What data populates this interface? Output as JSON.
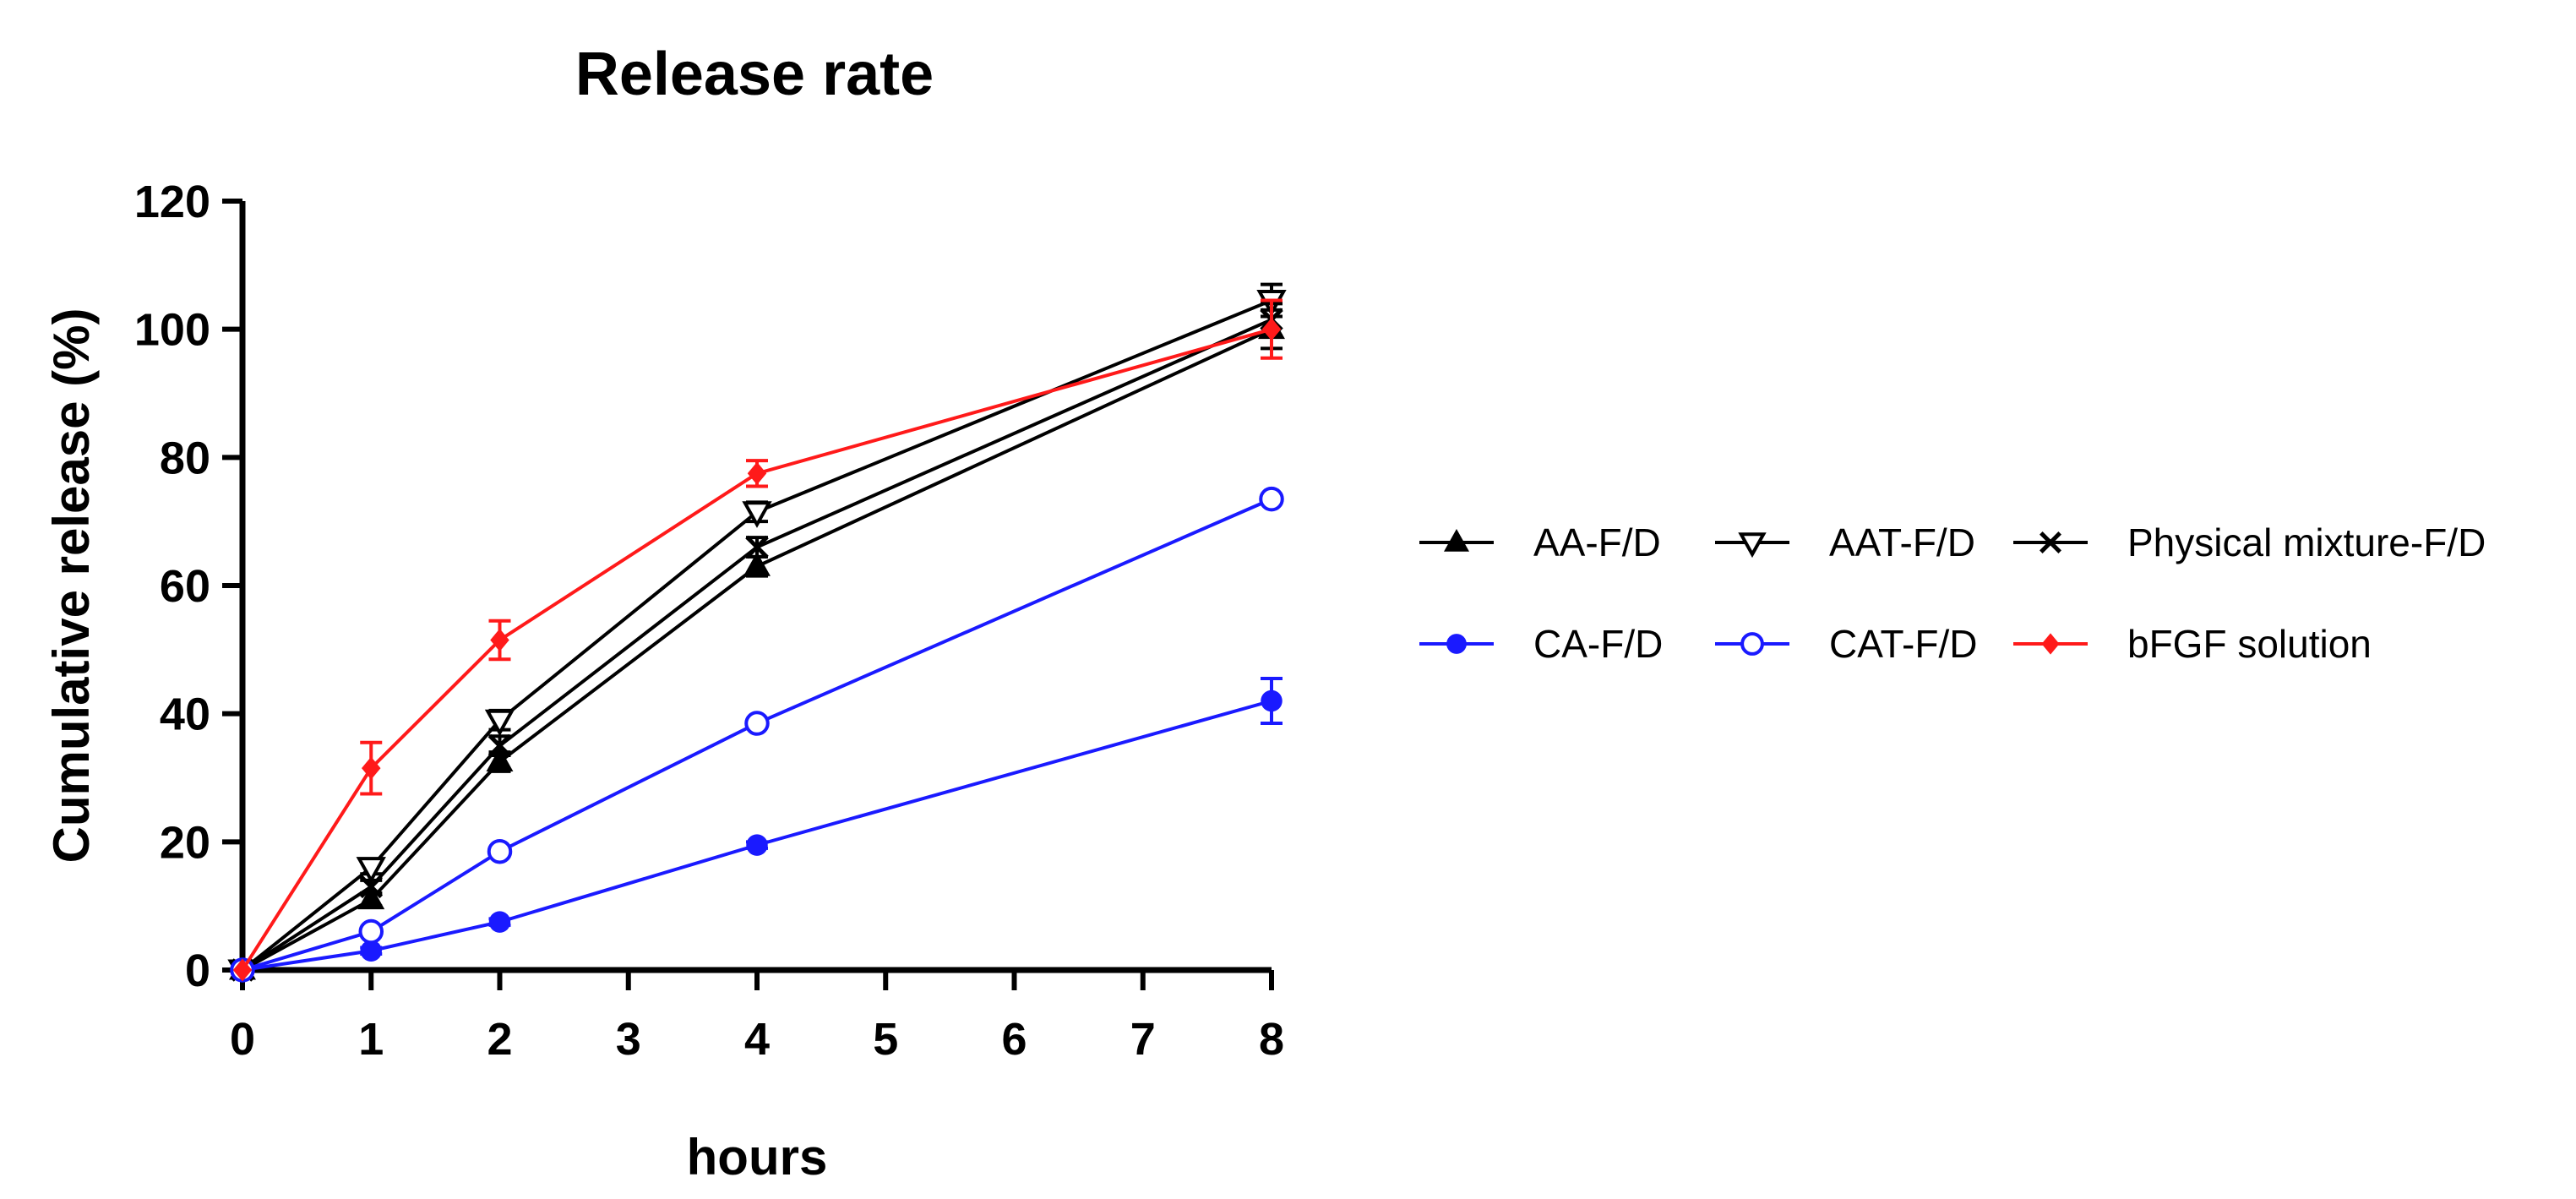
{
  "chart_data": {
    "type": "line",
    "title": "Release rate",
    "xlabel": "hours",
    "ylabel": "Cumulative release (%)",
    "x": [
      0,
      1,
      2,
      4,
      8
    ],
    "x_ticks": [
      "0",
      "1",
      "2",
      "3",
      "4",
      "5",
      "6",
      "7",
      "8"
    ],
    "y_ticks": [
      "0",
      "20",
      "40",
      "60",
      "80",
      "100",
      "120"
    ],
    "xlim": [
      0,
      8
    ],
    "ylim": [
      0,
      120
    ],
    "grid": false,
    "legend_position": "right",
    "series": [
      {
        "name": "AA-F/D",
        "color": "#000000",
        "marker": "triangle-up-filled",
        "values": [
          0,
          11,
          32.5,
          63,
          100
        ],
        "errors": [
          0,
          1,
          1.5,
          1.5,
          3
        ]
      },
      {
        "name": "AAT-F/D",
        "color": "#000000",
        "marker": "triangle-down-open",
        "values": [
          0,
          16,
          39,
          71.5,
          104.5
        ],
        "errors": [
          0,
          1,
          1.5,
          1.5,
          2.5
        ]
      },
      {
        "name": "Physical mixture-F/D",
        "color": "#000000",
        "marker": "x",
        "values": [
          0,
          13,
          35,
          66,
          101.5
        ],
        "errors": [
          0,
          1,
          1.5,
          1.5,
          2.5
        ]
      },
      {
        "name": "CA-F/D",
        "color": "#1a1aff",
        "marker": "circle-filled",
        "values": [
          0,
          3,
          7.5,
          19.5,
          42
        ],
        "errors": [
          0,
          0.5,
          0.5,
          0.5,
          3.5
        ]
      },
      {
        "name": "CAT-F/D",
        "color": "#1a1aff",
        "marker": "circle-open",
        "values": [
          0,
          6,
          18.5,
          38.5,
          73.5
        ],
        "errors": [
          0,
          0.5,
          0.5,
          0.5,
          0.5
        ]
      },
      {
        "name": "bFGF solution",
        "color": "#ff1a1a",
        "marker": "diamond-filled",
        "values": [
          0,
          31.5,
          51.5,
          77.5,
          100
        ],
        "errors": [
          0,
          4,
          3,
          2,
          4.5
        ]
      }
    ]
  }
}
